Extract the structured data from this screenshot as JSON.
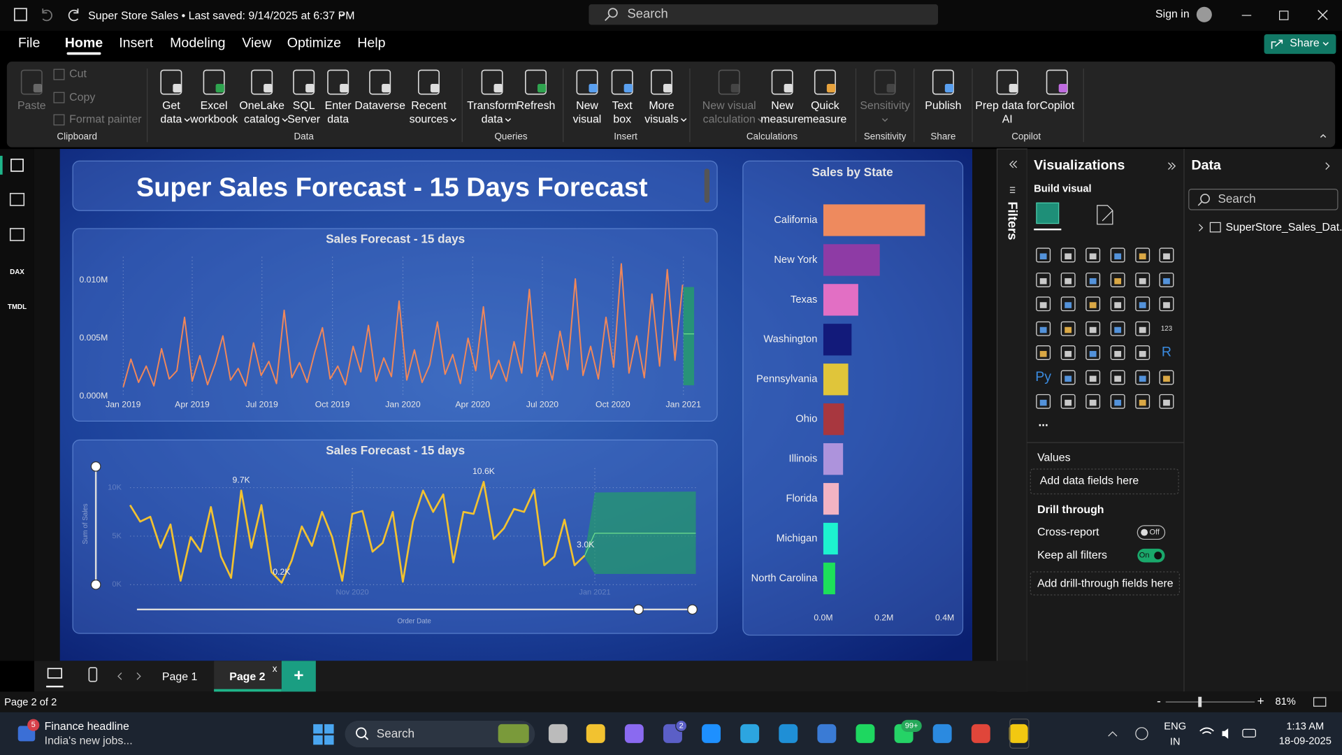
{
  "title_bar": {
    "document": "Super Store Sales • Last saved: 9/14/2025 at 6:37 PM",
    "search": "Search",
    "sign_in": "Sign in"
  },
  "menu": {
    "tabs": [
      {
        "label": "File"
      },
      {
        "label": "Home",
        "active": true
      },
      {
        "label": "Insert"
      },
      {
        "label": "Modeling"
      },
      {
        "label": "View"
      },
      {
        "label": "Optimize"
      },
      {
        "label": "Help"
      }
    ],
    "share": "Share"
  },
  "ribbon": {
    "groups": [
      {
        "label": "Clipboard",
        "items": [
          {
            "lines": [
              "Paste"
            ],
            "disabled": true
          },
          {
            "lines": [
              "Cut"
            ],
            "disabled": true,
            "small": true
          },
          {
            "lines": [
              "Copy"
            ],
            "disabled": true,
            "small": true
          },
          {
            "lines": [
              "Format painter"
            ],
            "disabled": true,
            "small": true
          }
        ]
      },
      {
        "label": "Data",
        "items": [
          {
            "lines": [
              "Get",
              "data"
            ],
            "dropdown": true
          },
          {
            "lines": [
              "Excel",
              "workbook"
            ]
          },
          {
            "lines": [
              "OneLake",
              "catalog"
            ],
            "dropdown": true
          },
          {
            "lines": [
              "SQL",
              "Server"
            ]
          },
          {
            "lines": [
              "Enter",
              "data"
            ]
          },
          {
            "lines": [
              "Dataverse"
            ]
          },
          {
            "lines": [
              "Recent",
              "sources"
            ],
            "dropdown": true
          }
        ]
      },
      {
        "label": "Queries",
        "items": [
          {
            "lines": [
              "Transform",
              "data"
            ],
            "dropdown": true
          },
          {
            "lines": [
              "Refresh"
            ]
          }
        ]
      },
      {
        "label": "Insert",
        "items": [
          {
            "lines": [
              "New",
              "visual"
            ]
          },
          {
            "lines": [
              "Text",
              "box"
            ]
          },
          {
            "lines": [
              "More",
              "visuals"
            ],
            "dropdown": true
          }
        ]
      },
      {
        "label": "Calculations",
        "items": [
          {
            "lines": [
              "New visual",
              "calculation"
            ],
            "dropdown": true,
            "disabled": true
          },
          {
            "lines": [
              "New",
              "measure"
            ]
          },
          {
            "lines": [
              "Quick",
              "measure"
            ]
          }
        ]
      },
      {
        "label": "Sensitivity",
        "items": [
          {
            "lines": [
              "Sensitivity"
            ],
            "dropdown": true,
            "disabled": true
          }
        ]
      },
      {
        "label": "Share",
        "items": [
          {
            "lines": [
              "Publish"
            ]
          }
        ]
      },
      {
        "label": "Copilot",
        "items": [
          {
            "lines": [
              "Prep data for",
              "AI"
            ]
          },
          {
            "lines": [
              "Copilot"
            ]
          }
        ]
      }
    ]
  },
  "left_rail": {
    "labels": [
      "DAX",
      "TMDL"
    ]
  },
  "report": {
    "title": "Super Sales Forecast - 15 Days Forecast"
  },
  "chart_data": [
    {
      "type": "line",
      "title": "Sales Forecast - 15 days",
      "x": [
        0,
        10,
        20,
        30,
        40,
        50,
        60,
        70,
        80,
        90,
        100,
        110,
        120,
        130,
        140,
        150,
        160,
        170,
        180,
        190,
        200,
        210,
        220,
        230,
        240,
        250,
        260,
        270,
        280,
        290,
        300,
        310,
        320,
        330,
        340,
        350,
        360,
        370,
        380,
        390,
        400,
        410,
        420,
        430,
        440,
        450,
        460,
        470,
        480,
        490,
        500,
        510,
        520,
        530,
        540,
        550,
        560,
        570,
        580,
        590,
        600,
        610,
        620,
        630,
        640,
        650,
        660,
        670,
        680,
        690,
        700,
        710,
        720,
        730
      ],
      "values": [
        800,
        3200,
        1200,
        2600,
        900,
        4100,
        1500,
        2200,
        6800,
        1300,
        3500,
        1000,
        2800,
        5200,
        1400,
        2400,
        900,
        4600,
        1800,
        3000,
        1100,
        7400,
        1600,
        2900,
        1200,
        3800,
        5900,
        1500,
        2600,
        1000,
        4300,
        2100,
        6100,
        1300,
        3300,
        1700,
        8200,
        1400,
        4000,
        1200,
        2700,
        6400,
        1900,
        3600,
        1100,
        5000,
        2200,
        7700,
        1500,
        3100,
        1300,
        4700,
        2000,
        9200,
        1700,
        3800,
        1400,
        5600,
        2300,
        10100,
        1800,
        4300,
        1500,
        6800,
        2500,
        11400,
        2000,
        5200,
        1600,
        8800,
        2600,
        10900,
        3100,
        9600
      ],
      "color": "#f0875a",
      "forecast": {
        "x": [
          731,
          745
        ],
        "values": [
          5370,
          5370
        ],
        "upper": [
          9400,
          9400
        ],
        "lower": [
          950,
          950
        ],
        "color": "#22a85e"
      },
      "xlim": [
        0,
        745
      ],
      "xticks": [
        {
          "value": 0,
          "label": "Jan 2019"
        },
        {
          "value": 90,
          "label": "Apr 2019"
        },
        {
          "value": 181,
          "label": "Jul 2019"
        },
        {
          "value": 273,
          "label": "Oct 2019"
        },
        {
          "value": 365,
          "label": "Jan 2020"
        },
        {
          "value": 456,
          "label": "Apr 2020"
        },
        {
          "value": 547,
          "label": "Jul 2020"
        },
        {
          "value": 639,
          "label": "Oct 2020"
        },
        {
          "value": 731,
          "label": "Jan 2021"
        }
      ],
      "ylim": [
        0,
        12000
      ],
      "yticks": [
        {
          "value": 0,
          "label": "0.000M"
        },
        {
          "value": 5000,
          "label": "0.005M"
        },
        {
          "value": 10000,
          "label": "0.010M"
        }
      ],
      "grid": "x"
    },
    {
      "type": "line",
      "title": "Sales Forecast - 15 days",
      "y_label": "Sum of Sales",
      "x_label": "Order Date",
      "values": [
        8200,
        6500,
        7000,
        3800,
        6200,
        400,
        4900,
        3400,
        8000,
        2900,
        700,
        9700,
        3800,
        8200,
        1300,
        200,
        2500,
        6000,
        4000,
        7500,
        4900,
        400,
        7300,
        7600,
        3400,
        4300,
        7500,
        300,
        6500,
        9700,
        7500,
        9300,
        2300,
        7500,
        7300,
        10600,
        4700,
        5800,
        7800,
        7500,
        9800,
        2000,
        2900,
        6700,
        2000,
        3000
      ],
      "value_labels": [
        null,
        null,
        null,
        null,
        null,
        null,
        null,
        null,
        null,
        null,
        null,
        "9.7K",
        null,
        null,
        null,
        "0.2K",
        null,
        null,
        null,
        null,
        null,
        null,
        null,
        null,
        null,
        null,
        null,
        null,
        null,
        null,
        null,
        null,
        null,
        null,
        null,
        "10.6K",
        null,
        null,
        null,
        null,
        null,
        null,
        null,
        null,
        null,
        "3.0K"
      ],
      "color": "#f2c230",
      "forecast": {
        "x": [
          45,
          46,
          56
        ],
        "values": [
          3000,
          5300,
          5300
        ],
        "upper": [
          3200,
          9500,
          9600
        ],
        "lower": [
          2800,
          1100,
          1100
        ],
        "color": "#22a85e"
      },
      "xlim": [
        0,
        56
      ],
      "xticks": [
        {
          "value": 22,
          "label": "Nov 2020"
        },
        {
          "value": 46,
          "label": "Jan 2021"
        }
      ],
      "ylim": [
        0,
        12000
      ],
      "yticks": [
        {
          "value": 0,
          "label": "0K"
        },
        {
          "value": 5000,
          "label": "5K"
        },
        {
          "value": 10000,
          "label": "10K"
        }
      ],
      "grid": "both"
    },
    {
      "type": "barh",
      "title": "Sales by State",
      "categories": [
        "California",
        "New York",
        "Texas",
        "Washington",
        "Pennsylvania",
        "Ohio",
        "Illinois",
        "Florida",
        "Michigan",
        "North Carolina"
      ],
      "values": [
        0.335,
        0.186,
        0.115,
        0.093,
        0.082,
        0.068,
        0.065,
        0.051,
        0.048,
        0.039
      ],
      "colors": [
        "#ee8a5e",
        "#8e3ba5",
        "#e26fc4",
        "#121a7a",
        "#e0c53a",
        "#a8373f",
        "#ad93dc",
        "#f2b3c3",
        "#1df2cf",
        "#1de05a"
      ],
      "xlim": [
        0,
        0.44
      ],
      "xticks": [
        {
          "value": 0,
          "label": "0.0M"
        },
        {
          "value": 0.2,
          "label": "0.2M"
        },
        {
          "value": 0.4,
          "label": "0.4M"
        }
      ]
    }
  ],
  "pages": {
    "tabs": [
      {
        "label": "Page 1"
      },
      {
        "label": "Page 2",
        "active": true
      }
    ],
    "close": "x",
    "add": "+"
  },
  "filters": {
    "label": "Filters"
  },
  "visualizations": {
    "title": "Visualizations",
    "build": "Build visual",
    "icon_texts": [
      "123",
      "R",
      "Py"
    ],
    "more": "...",
    "values": "Values",
    "values_hint": "Add data fields here",
    "drill": "Drill through",
    "cross_report": "Cross-report",
    "cross_state": "Off",
    "keep_filters": "Keep all filters",
    "keep_state": "On",
    "drill_hint": "Add drill-through fields here"
  },
  "data_pane": {
    "title": "Data",
    "search": "Search",
    "table": "SuperStore_Sales_Dat..."
  },
  "status": {
    "page": "Page 2 of 2",
    "zoom": "81%",
    "minus": "-",
    "plus": "+"
  },
  "taskbar": {
    "widget_badge": "5",
    "headline": "Finance headline",
    "subline": "India's new jobs...",
    "search": "Search",
    "teams_badge": "2",
    "whatsapp_badge": "99+",
    "lang": "ENG",
    "region": "IN",
    "time": "1:13 AM",
    "date": "18-09-2025"
  }
}
